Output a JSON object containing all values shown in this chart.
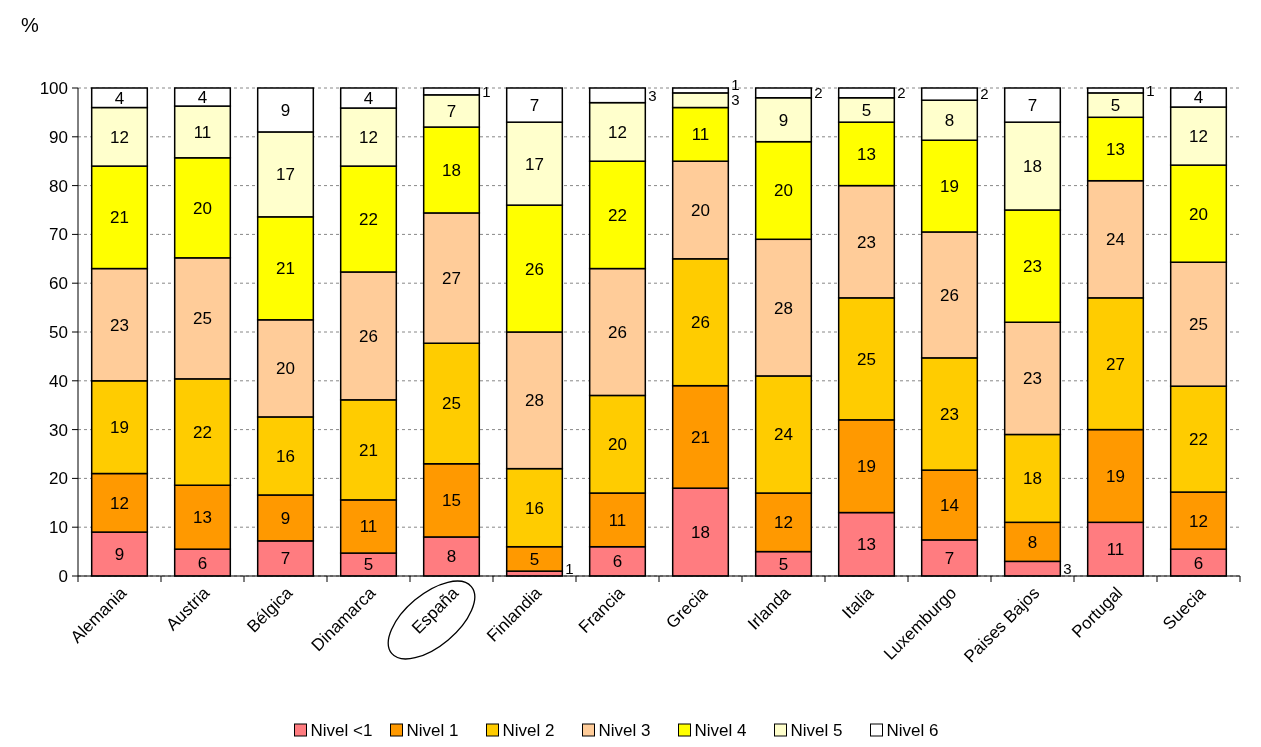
{
  "chart_data": {
    "type": "bar",
    "stacked": true,
    "ylabel": "%",
    "categories": [
      "Alemania",
      "Austria",
      "Bélgica",
      "Dinamarca",
      "España",
      "Finlandia",
      "Francia",
      "Grecia",
      "Irlanda",
      "Italia",
      "Luxemburgo",
      "Paises Bajos",
      "Portugal",
      "Suecia"
    ],
    "series": [
      {
        "name": "Nivel <1",
        "color": "#ff7c80",
        "values": [
          9,
          5.5,
          7.2,
          4.7,
          8.0,
          1,
          6,
          18,
          5,
          13,
          7.4,
          3,
          11,
          5.5
        ],
        "value_labels": [
          "9",
          "6",
          "7",
          "5",
          "8",
          "1",
          "6",
          "18",
          "5",
          "13",
          "7",
          "3",
          "11",
          "6"
        ]
      },
      {
        "name": "Nivel 1",
        "color": "#ff9900",
        "values": [
          12,
          13.1,
          9.4,
          10.9,
          15.0,
          5,
          11,
          21,
          12,
          19,
          14.3,
          8,
          19,
          11.7
        ],
        "value_labels": [
          "12",
          "13",
          "9",
          "11",
          "15",
          "5",
          "11",
          "21",
          "12",
          "19",
          "14",
          "8",
          "19",
          "12"
        ]
      },
      {
        "name": "Nivel 2",
        "color": "#ffcc00",
        "values": [
          19,
          21.8,
          16.0,
          20.5,
          24.7,
          16,
          20,
          26,
          24,
          25,
          23.0,
          18,
          27,
          21.7
        ],
        "value_labels": [
          "19",
          "22",
          "16",
          "21",
          "25",
          "16",
          "20",
          "26",
          "24",
          "25",
          "23",
          "18",
          "27",
          "22"
        ]
      },
      {
        "name": "Nivel 3",
        "color": "#ffcc99",
        "values": [
          23,
          24.8,
          19.9,
          26.2,
          26.7,
          28,
          26,
          20,
          28,
          23,
          25.8,
          23,
          24,
          25.4
        ],
        "value_labels": [
          "23",
          "25",
          "20",
          "26",
          "27",
          "28",
          "26",
          "20",
          "28",
          "23",
          "26",
          "23",
          "24",
          "25"
        ]
      },
      {
        "name": "Nivel 4",
        "color": "#ffff00",
        "values": [
          21,
          20.5,
          21.1,
          21.7,
          17.6,
          26,
          22,
          11,
          20,
          13,
          18.8,
          23,
          13,
          19.9
        ],
        "value_labels": [
          "21",
          "20",
          "21",
          "22",
          "18",
          "26",
          "22",
          "11",
          "20",
          "13",
          "19",
          "23",
          "13",
          "20"
        ]
      },
      {
        "name": "Nivel 5",
        "color": "#ffffcc",
        "values": [
          12,
          10.6,
          17.4,
          11.9,
          6.6,
          17,
          12,
          3,
          9,
          5,
          8.2,
          18,
          5,
          11.9
        ],
        "value_labels": [
          "12",
          "11",
          "17",
          "12",
          "7",
          "17",
          "12",
          "3",
          "9",
          "5",
          "8",
          "18",
          "5",
          "12"
        ]
      },
      {
        "name": "Nivel 6",
        "color": "#ffffff",
        "values": [
          4,
          3.7,
          9.0,
          4.1,
          1.4,
          7,
          3,
          1,
          2,
          2,
          2.5,
          7,
          1,
          3.9
        ],
        "value_labels": [
          "4",
          "4",
          "9",
          "4",
          "1",
          "7",
          "3",
          "1",
          "2",
          "2",
          "2",
          "7",
          "1",
          "4"
        ]
      }
    ],
    "ylim": [
      0,
      100
    ],
    "yticks": [
      0,
      10,
      20,
      30,
      40,
      50,
      60,
      70,
      80,
      90,
      100
    ],
    "grid": "y",
    "legend": "bottom"
  }
}
